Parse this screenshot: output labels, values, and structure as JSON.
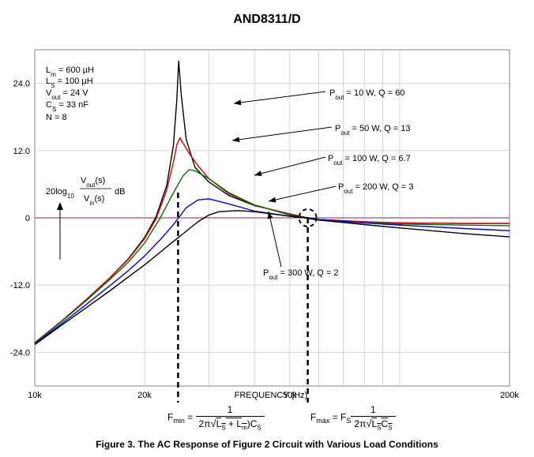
{
  "header": {
    "title": "AND8311/D"
  },
  "chart_data": {
    "type": "line",
    "xlabel": "FREQUENCY (Hz)",
    "x_scale": "log",
    "xlim": [
      10000,
      200000
    ],
    "ylim": [
      -30,
      30
    ],
    "x_ticks": [
      {
        "value": 10000,
        "label": "10k"
      },
      {
        "value": 20000,
        "label": "20k"
      },
      {
        "value": 50000,
        "label": "50k"
      },
      {
        "value": 200000,
        "label": "200k"
      }
    ],
    "y_ticks": [
      {
        "value": 24,
        "label": "24.0"
      },
      {
        "value": 12,
        "label": "12.0"
      },
      {
        "value": 0,
        "label": "0"
      },
      {
        "value": -12,
        "label": "-12.0"
      },
      {
        "value": -24,
        "label": "-24.0"
      }
    ],
    "grid": true,
    "params": {
      "lm": "L_m = 600 µH",
      "ls": "L_S = 100 µH",
      "vout": "V_out = 24 V",
      "cs": "C_S = 33 nF",
      "n": "N = 8"
    },
    "ylabel_parts": {
      "prefix": "20log",
      "sub": "10",
      "num": "V_out(s)",
      "den": "V_in(s)",
      "unit": "dB"
    },
    "annotations": {
      "fmin_marker_hz": 24700,
      "fmax_marker_hz": 56000
    },
    "series": [
      {
        "name": "P_out = 10 W, Q = 60",
        "label_main": "P",
        "label_sub": "out",
        "label_rest": " = 10 W, Q = 60",
        "color": "#000000",
        "x": [
          10000,
          12000,
          14000,
          16000,
          18000,
          20000,
          21500,
          23000,
          24000,
          24500,
          24800,
          25200,
          26000,
          27500,
          30000,
          34000,
          40000,
          50000,
          55000,
          60000,
          80000,
          100000,
          150000,
          200000
        ],
        "y": [
          -22.3,
          -18.1,
          -14.3,
          -10.8,
          -7.4,
          -3.5,
          0.2,
          5.8,
          13.0,
          21.0,
          28.0,
          22.0,
          14.0,
          9.0,
          6.4,
          4.0,
          2.2,
          0.7,
          0.1,
          -0.3,
          -0.7,
          -0.9,
          -1.0,
          -1.0
        ]
      },
      {
        "name": "P_out = 50 W, Q = 13",
        "label_main": "P",
        "label_sub": "out",
        "label_rest": " = 50 W, Q = 13",
        "color": "#e00000",
        "x": [
          10000,
          12000,
          14000,
          16000,
          18000,
          20000,
          21500,
          23000,
          24000,
          24500,
          25000,
          25500,
          26500,
          28000,
          30000,
          34000,
          40000,
          50000,
          55000,
          60000,
          80000,
          100000,
          150000,
          200000
        ],
        "y": [
          -22.3,
          -18.1,
          -14.3,
          -10.8,
          -7.5,
          -3.7,
          -0.2,
          5.0,
          10.0,
          13.0,
          14.3,
          13.3,
          11.5,
          9.3,
          7.0,
          4.3,
          2.3,
          0.6,
          0.0,
          -0.3,
          -0.7,
          -0.9,
          -1.0,
          -1.0
        ]
      },
      {
        "name": "P_out = 100 W, Q = 6.7",
        "label_main": "P",
        "label_sub": "out",
        "label_rest": " = 100 W, Q = 6.7",
        "color": "#007000",
        "x": [
          10000,
          12000,
          14000,
          16000,
          18000,
          20000,
          22000,
          24000,
          25500,
          26500,
          27500,
          30000,
          34000,
          40000,
          50000,
          55000,
          60000,
          80000,
          100000,
          150000,
          200000
        ],
        "y": [
          -22.4,
          -18.2,
          -14.5,
          -11.1,
          -8.0,
          -4.5,
          -0.2,
          4.5,
          7.5,
          8.6,
          8.4,
          7.0,
          4.5,
          2.3,
          0.5,
          0.0,
          -0.4,
          -0.9,
          -1.1,
          -1.3,
          -1.4
        ]
      },
      {
        "name": "P_out = 200 W, Q = 3",
        "label_main": "P",
        "label_sub": "out",
        "label_rest": " = 200 W, Q = 3",
        "color": "#0000dd",
        "x": [
          10000,
          12000,
          14000,
          16000,
          18000,
          20000,
          22000,
          24000,
          26000,
          28000,
          30000,
          34000,
          40000,
          50000,
          55000,
          60000,
          80000,
          100000,
          150000,
          200000
        ],
        "y": [
          -22.5,
          -18.6,
          -15.2,
          -12.2,
          -9.5,
          -6.8,
          -4.0,
          -1.2,
          1.8,
          3.2,
          3.4,
          2.5,
          1.2,
          0.3,
          0.0,
          -0.3,
          -0.9,
          -1.3,
          -1.9,
          -2.3
        ]
      },
      {
        "name": "P_out = 300 W, Q = 2",
        "label_main": "P",
        "label_sub": "out",
        "label_rest": " = 300 W, Q = 2",
        "color": "#000000",
        "x": [
          10000,
          12000,
          14000,
          16000,
          18000,
          20000,
          22000,
          24000,
          26000,
          28000,
          30000,
          32000,
          36000,
          40000,
          50000,
          55000,
          60000,
          80000,
          100000,
          150000,
          200000
        ],
        "y": [
          -22.6,
          -18.9,
          -15.8,
          -13.1,
          -10.6,
          -8.4,
          -6.2,
          -4.2,
          -2.4,
          -0.7,
          0.5,
          1.1,
          1.3,
          1.1,
          0.3,
          0.0,
          -0.4,
          -1.2,
          -1.8,
          -2.8,
          -3.4
        ]
      }
    ]
  },
  "formulas": {
    "fmin": {
      "lhs_main": "F",
      "lhs_sub": "min",
      "eq": " = ",
      "num": "1",
      "den_prefix": "2π",
      "den_sqrt": "L_S + L_m",
      "den_after": "C_S"
    },
    "fmax": {
      "lhs_main": "F",
      "lhs_sub": "max",
      "eq": " = F",
      "eq_sub": "S",
      "num": "1",
      "den_prefix": "2π",
      "den_sqrt": "L_SC_S"
    }
  },
  "caption": "Figure 3. The AC Response of Figure 2 Circuit with Various Load Conditions"
}
